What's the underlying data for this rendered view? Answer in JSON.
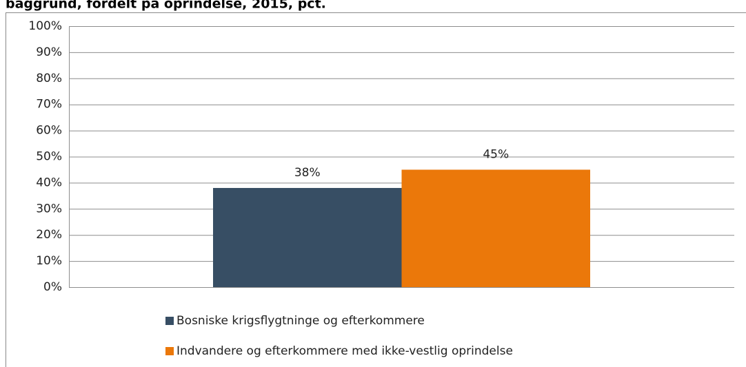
{
  "chart_data": {
    "type": "bar",
    "title": "baggrund, fordelt på oprindelse, 2015, pct.",
    "categories": [
      null
    ],
    "series": [
      {
        "name": "Bosniske krigsflygtninge og efterkommere",
        "color": "#374e64",
        "values": [
          38
        ],
        "value_labels": [
          "38%"
        ]
      },
      {
        "name": "Indvandere og efterkommere med ikke-vestlig oprindelse",
        "color": "#eb780a",
        "values": [
          45
        ],
        "value_labels": [
          "45%"
        ]
      }
    ],
    "ylim": [
      0,
      100
    ],
    "yticks": [
      {
        "value": 0,
        "label": "0%"
      },
      {
        "value": 10,
        "label": "10%"
      },
      {
        "value": 20,
        "label": "20%"
      },
      {
        "value": 30,
        "label": "30%"
      },
      {
        "value": 40,
        "label": "40%"
      },
      {
        "value": 50,
        "label": "50%"
      },
      {
        "value": 60,
        "label": "60%"
      },
      {
        "value": 70,
        "label": "70%"
      },
      {
        "value": 80,
        "label": "80%"
      },
      {
        "value": 90,
        "label": "90%"
      },
      {
        "value": 100,
        "label": "100%"
      }
    ],
    "grid": true,
    "legend": "bottom"
  }
}
